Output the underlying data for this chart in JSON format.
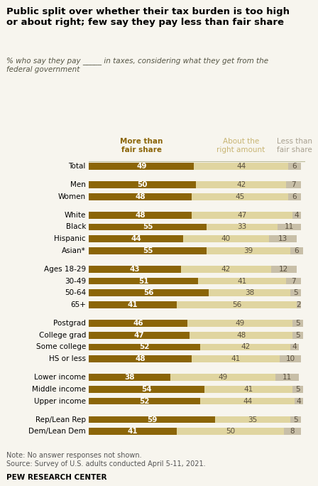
{
  "title": "Public split over whether their tax burden is too high\nor about right; few say they pay less than fair share",
  "subtitle": "% who say they pay _____ in taxes, considering what they get from the\nfederal government",
  "col_headers": [
    "More than\nfair share",
    "About the\nright amount",
    "Less than\nfair share"
  ],
  "col_header_colors": [
    "#8B6508",
    "#C8B472",
    "#A8A090"
  ],
  "categories": [
    "Total",
    "Men",
    "Women",
    "White",
    "Black",
    "Hispanic",
    "Asian*",
    "Ages 18-29",
    "30-49",
    "50-64",
    "65+",
    "Postgrad",
    "College grad",
    "Some college",
    "HS or less",
    "Lower income",
    "Middle income",
    "Upper income",
    "Rep/Lean Rep",
    "Dem/Lean Dem"
  ],
  "group_after": [
    0,
    2,
    6,
    10,
    14,
    17
  ],
  "values_more": [
    49,
    50,
    48,
    48,
    55,
    44,
    55,
    43,
    51,
    56,
    41,
    46,
    47,
    52,
    48,
    38,
    54,
    52,
    59,
    41
  ],
  "values_about": [
    44,
    42,
    45,
    47,
    33,
    40,
    39,
    42,
    41,
    38,
    56,
    49,
    48,
    42,
    41,
    49,
    41,
    44,
    35,
    50
  ],
  "values_less": [
    6,
    7,
    6,
    4,
    11,
    13,
    6,
    12,
    7,
    5,
    2,
    5,
    5,
    4,
    10,
    11,
    5,
    4,
    5,
    8
  ],
  "color_more": "#8B6508",
  "color_about": "#E0D5A0",
  "color_less": "#C8BFA8",
  "bg_color": "#F7F5EE",
  "note": "Note: No answer responses not shown.\nSource: Survey of U.S. adults conducted April 5-11, 2021.",
  "footer": "PEW RESEARCH CENTER"
}
